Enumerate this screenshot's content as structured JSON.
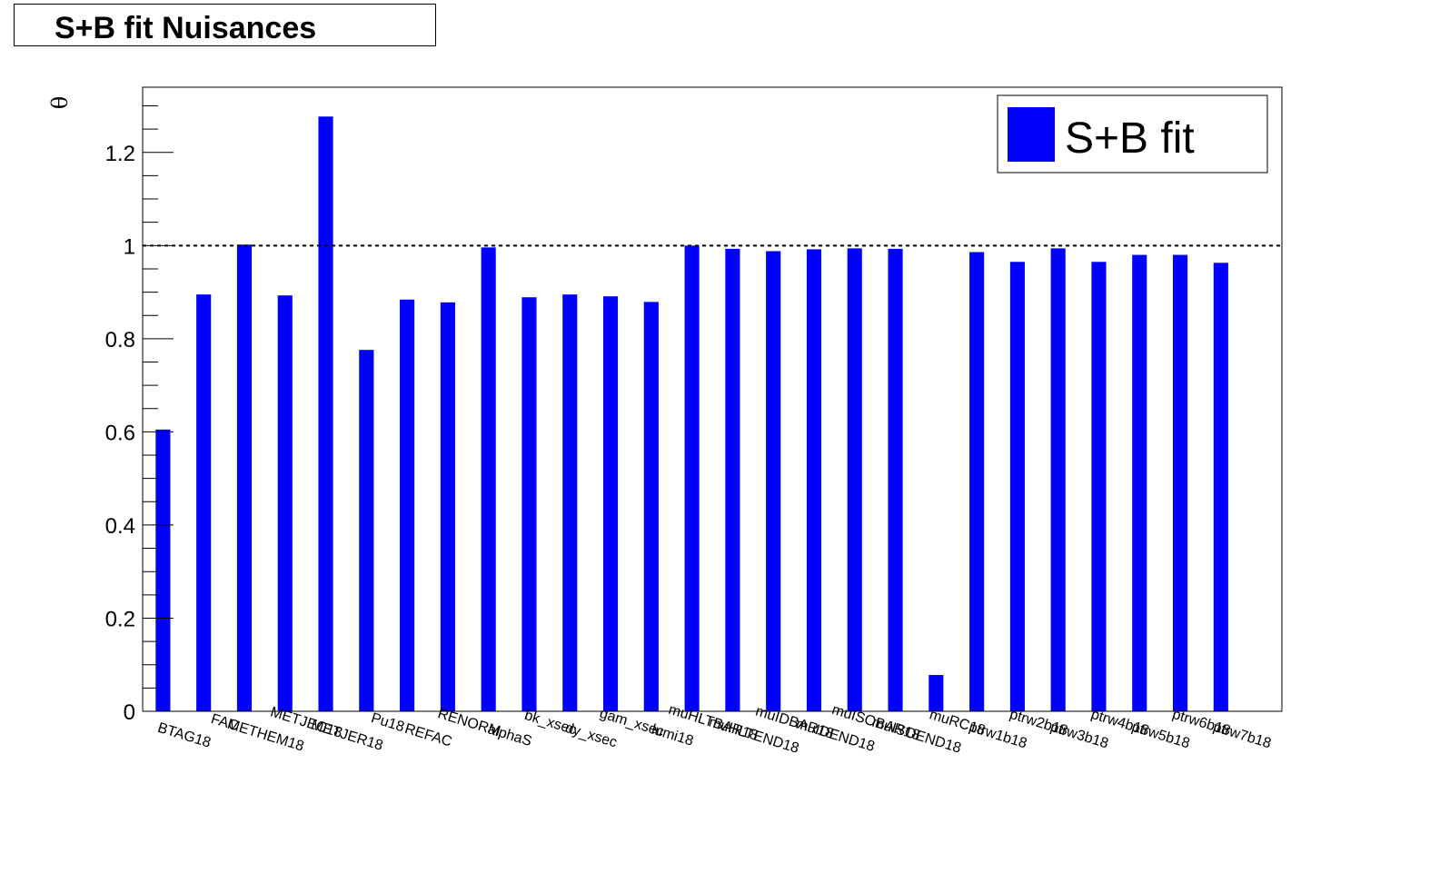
{
  "title": "S+B fit Nuisances",
  "chart_data": {
    "type": "bar",
    "title": "S+B fit Nuisances",
    "xlabel": "",
    "ylabel": "θ",
    "ylim": [
      0,
      1.34
    ],
    "yticks": [
      "0",
      "0.2",
      "0.4",
      "0.6",
      "0.8",
      "1",
      "1.2"
    ],
    "reference_line": 1,
    "legend": {
      "position": "top-right",
      "entries": [
        "S+B fit"
      ]
    },
    "bar_color": "#0000ff",
    "categories": [
      "BTAG18",
      "FAC",
      "METHEM18",
      "METJEC18",
      "METJER18",
      "Pu18",
      "REFAC",
      "RENORM",
      "alphaS",
      "bk_xsec",
      "dy_xsec",
      "gam_xsec",
      "lumi18",
      "muHLTBAR18",
      "muHLTEND18",
      "muIDBAR18",
      "muIDEND18",
      "muISOBAR18",
      "muISOEND18",
      "muRC18",
      "ptrw1b18",
      "ptrw2b18",
      "ptrw3b18",
      "ptrw4b18",
      "ptrw5b18",
      "ptrw6b18",
      "ptrw7b18"
    ],
    "series": [
      {
        "name": "S+B fit",
        "values": [
          0.605,
          0.895,
          1.002,
          0.893,
          1.277,
          0.776,
          0.884,
          0.878,
          0.996,
          0.889,
          0.895,
          0.891,
          0.879,
          1.0,
          0.993,
          0.988,
          0.992,
          0.994,
          0.993,
          0.078,
          0.986,
          0.965,
          0.994,
          0.965,
          0.98,
          0.98,
          0.963
        ]
      }
    ]
  }
}
